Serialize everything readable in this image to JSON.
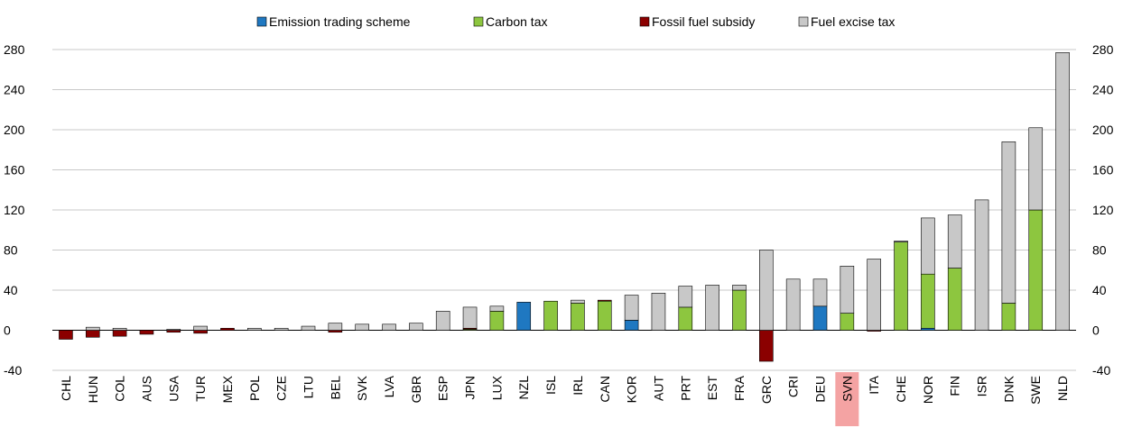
{
  "chart_data": {
    "type": "bar",
    "stacked": true,
    "title": "",
    "ylim": [
      -40,
      280
    ],
    "yticks": [
      -40,
      0,
      40,
      80,
      120,
      160,
      200,
      240,
      280
    ],
    "grid": true,
    "legend_position": "top",
    "highlight_category": "SVN",
    "highlight_color": "#f4a3a3",
    "categories": [
      "CHL",
      "HUN",
      "COL",
      "AUS",
      "USA",
      "TUR",
      "MEX",
      "POL",
      "CZE",
      "LTU",
      "BEL",
      "SVK",
      "LVA",
      "GBR",
      "ESP",
      "JPN",
      "LUX",
      "NZL",
      "ISL",
      "IRL",
      "CAN",
      "KOR",
      "AUT",
      "PRT",
      "EST",
      "FRA",
      "GRC",
      "CRI",
      "DEU",
      "SVN",
      "ITA",
      "CHE",
      "NOR",
      "FIN",
      "ISR",
      "DNK",
      "SWE",
      "NLD"
    ],
    "series": [
      {
        "name": "Emission trading scheme",
        "color": "#1f78c1",
        "values": [
          0,
          0,
          0,
          0,
          0,
          0,
          0,
          0,
          0,
          0,
          0,
          0,
          0,
          0,
          0,
          0,
          0,
          28,
          0,
          0,
          0,
          10,
          0,
          0,
          0,
          0,
          0,
          0,
          24,
          0,
          0,
          0,
          2,
          0,
          0,
          0,
          0,
          0
        ]
      },
      {
        "name": "Carbon tax",
        "color": "#8dc63f",
        "values": [
          0,
          0,
          0,
          0,
          0,
          0,
          0,
          0,
          0,
          0,
          0,
          0,
          0,
          0,
          0,
          1,
          19,
          0,
          29,
          27,
          29,
          0,
          0,
          23,
          0,
          40,
          0,
          0,
          0,
          17,
          0,
          88,
          54,
          62,
          0,
          27,
          120,
          0
        ]
      },
      {
        "name": "Fossil fuel subsidy",
        "color": "#8b0000",
        "values": [
          -9,
          -7,
          -6,
          -4,
          -2,
          -3,
          2,
          0,
          0,
          0,
          -2,
          0,
          0,
          0,
          0,
          1,
          0,
          0,
          0,
          0,
          1,
          0,
          0,
          0,
          0,
          0,
          -31,
          0,
          0,
          0,
          -1,
          0,
          0,
          0,
          0,
          0,
          0,
          0
        ]
      },
      {
        "name": "Fuel excise tax",
        "color": "#c8c8c8",
        "values": [
          0,
          3,
          2,
          0,
          1,
          4,
          0,
          2,
          2,
          4,
          7,
          6,
          6,
          7,
          19,
          21,
          5,
          0,
          0,
          3,
          0,
          25,
          37,
          21,
          45,
          5,
          80,
          51,
          27,
          47,
          71,
          1,
          56,
          53,
          130,
          161,
          82,
          277
        ]
      }
    ]
  }
}
